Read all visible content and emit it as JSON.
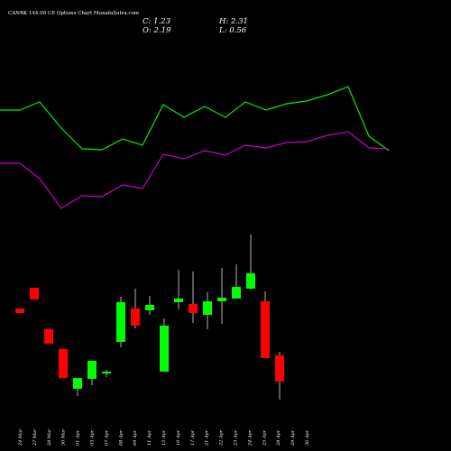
{
  "chart_data": {
    "type": "candlestick",
    "title": "CANBK 144.00 CE Options Chart MunafaSutra.com",
    "summary": {
      "c": "C: 1.23",
      "h": "H: 2.31",
      "o": "O: 2.19",
      "l": "L: 0.56"
    },
    "categories": [
      "24 Mar",
      "27 Mar",
      "28 Mar",
      "30 Mar",
      "01 Apr",
      "03 Apr",
      "07 Apr",
      "08 Apr",
      "09 Apr",
      "11 Apr",
      "15 Apr",
      "16 Apr",
      "17 Apr",
      "21 Apr",
      "22 Apr",
      "23 Apr",
      "24 Apr",
      "25 Apr",
      "28 Apr",
      "29 Apr",
      "30 Apr"
    ],
    "colors": {
      "up": "#00ff00",
      "down": "#ff0000",
      "line_a": "#00ee00",
      "line_b": "#cc00cc",
      "wick": "#ffffff"
    }
  }
}
